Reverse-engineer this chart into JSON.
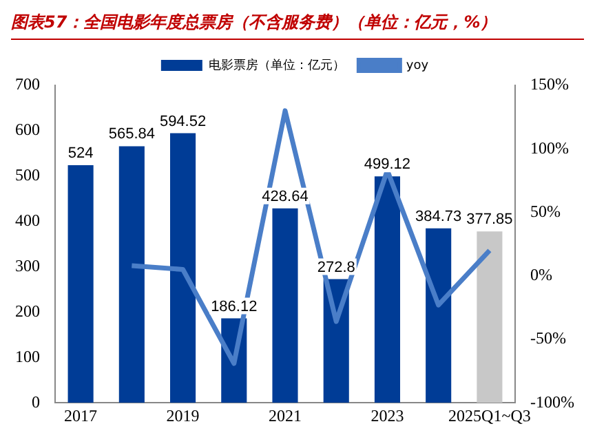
{
  "chart_data": {
    "type": "bar",
    "title": "图表57：全国电影年度总票房（不含服务费）（单位：亿元，%）",
    "categories": [
      "2017",
      null,
      "2019",
      null,
      "2021",
      null,
      "2023",
      null,
      "2025Q1~Q3"
    ],
    "series": [
      {
        "name": "电影票房（单位：亿元）",
        "color": "#003c96",
        "colors": [
          "#003c96",
          "#003c96",
          "#003c96",
          "#003c96",
          "#003c96",
          "#003c96",
          "#003c96",
          "#003c96",
          "#c8c8c8"
        ],
        "values": [
          524,
          565.84,
          594.52,
          186.12,
          428.64,
          272.8,
          499.12,
          384.73,
          377.85
        ],
        "value_labels": [
          "524",
          "565.84",
          "594.52",
          "186.12",
          "428.64",
          "272.8",
          "499.12",
          "384.73",
          "377.85"
        ]
      },
      {
        "name": "yoy",
        "type": "line",
        "axis": "y2",
        "color": "#4a7ec8",
        "values": [
          null,
          8,
          5,
          -69,
          130,
          -36,
          83,
          -23,
          20
        ]
      }
    ],
    "ylim": [
      0,
      700
    ],
    "yticks": [
      0,
      100,
      200,
      300,
      400,
      500,
      600,
      700
    ],
    "y2lim": [
      -100,
      150
    ],
    "y2ticks": [
      {
        "value": -100,
        "label": "-100%"
      },
      {
        "value": -50,
        "label": "-50%"
      },
      {
        "value": 0,
        "label": "0%"
      },
      {
        "value": 50,
        "label": "50%"
      },
      {
        "value": 100,
        "label": "100%"
      },
      {
        "value": 150,
        "label": "150%"
      }
    ],
    "legend": "top",
    "grid": false,
    "marker": "none",
    "line_style": "solid"
  }
}
